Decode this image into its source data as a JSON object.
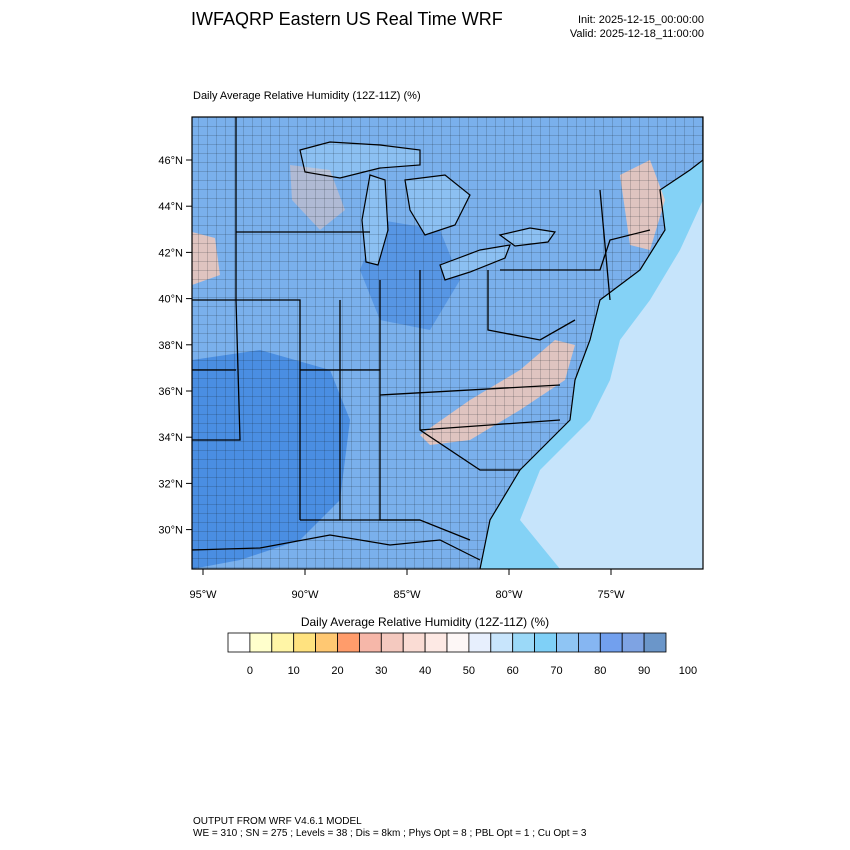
{
  "header": {
    "title": "IWFAQRP Eastern US Real Time WRF",
    "init": "Init: 2025-12-15_00:00:00",
    "valid": "Valid: 2025-12-18_11:00:00"
  },
  "map": {
    "subtitle": "Daily Average Relative Humidity (12Z-11Z)   (%)",
    "lat_labels": [
      "46°N",
      "44°N",
      "42°N",
      "40°N",
      "38°N",
      "36°N",
      "34°N",
      "32°N",
      "30°N"
    ],
    "lon_labels": [
      "95°W",
      "90°W",
      "85°W",
      "80°W",
      "75°W"
    ],
    "colors": {
      "land_base": "#7ab0ec",
      "lake": "#8cc0f2",
      "ocean_far": "#c6e4fb",
      "ocean_near": "#84d2f6",
      "moist_band": "#3f86e0",
      "dry_ridge": "#f1c8b8"
    }
  },
  "colorbar": {
    "title": "Daily Average Relative Humidity (12Z-11Z)  (%)",
    "labels": [
      "0",
      "10",
      "20",
      "30",
      "40",
      "50",
      "60",
      "70",
      "80",
      "90",
      "100"
    ],
    "colors": [
      "#ffffff",
      "#ffffcc",
      "#fff5a6",
      "#ffe27f",
      "#ffc872",
      "#ff9c6b",
      "#f6b7a9",
      "#f4c9bf",
      "#fadcd4",
      "#fde9e4",
      "#fdf7f6",
      "#e7effd",
      "#c8e5fc",
      "#9bd9f8",
      "#7fd0f7",
      "#8fc5f4",
      "#86b6f2",
      "#72a0ee",
      "#7ea3e3",
      "#6b96c9"
    ]
  },
  "footer": {
    "line1": "OUTPUT FROM WRF V4.6.1 MODEL",
    "line2": "WE = 310 ; SN = 275 ; Levels = 38 ; Dis = 8km ; Phys Opt = 8 ; PBL Opt = 1 ; Cu Opt = 3"
  }
}
